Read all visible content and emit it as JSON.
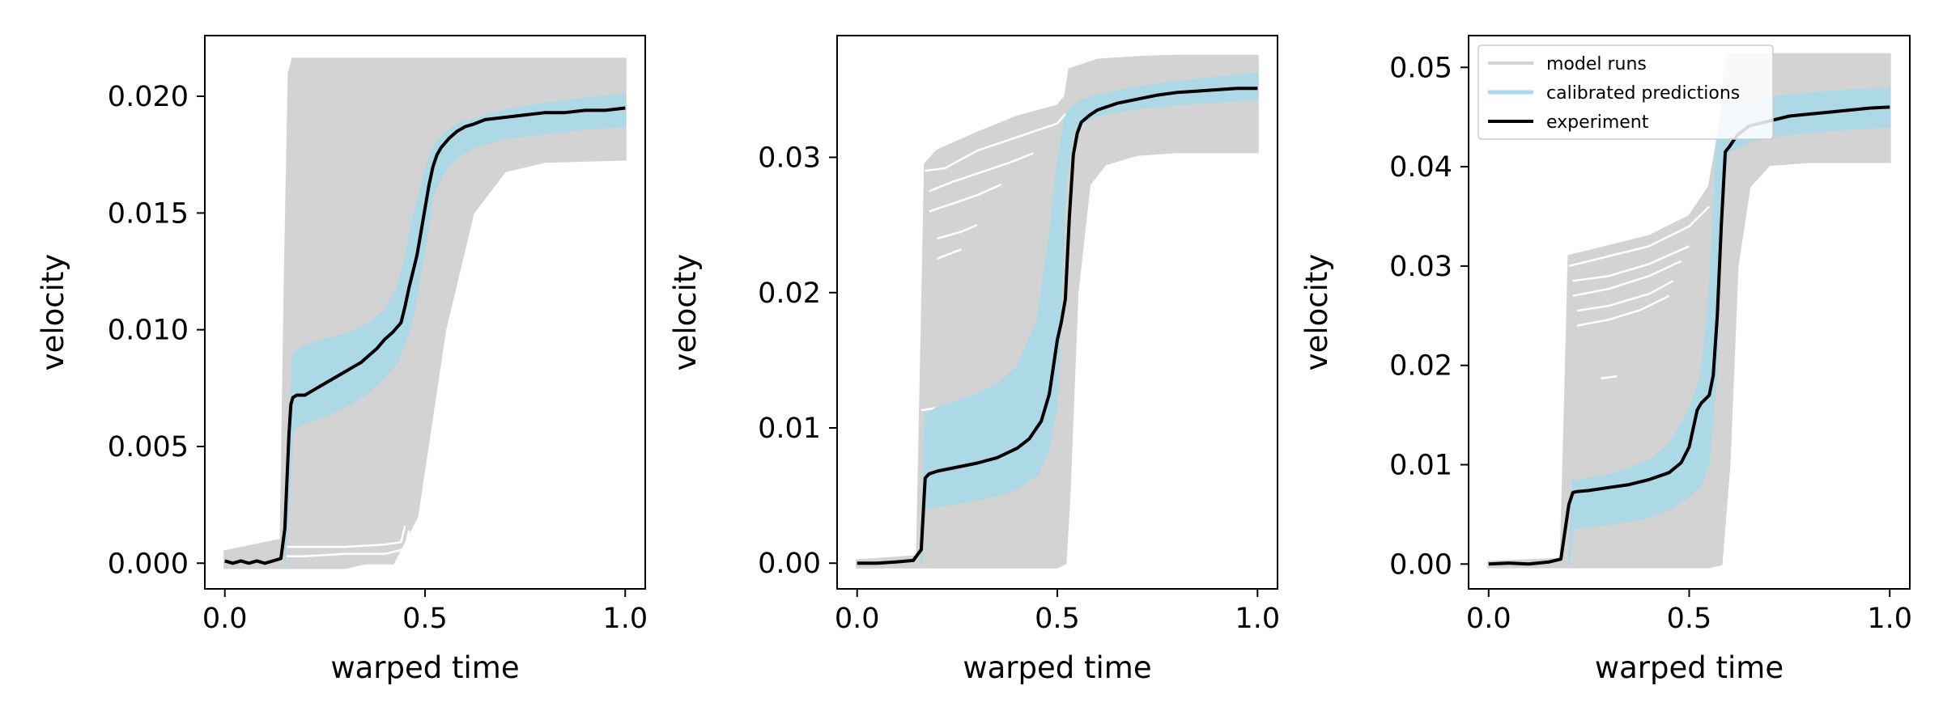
{
  "colors": {
    "model_runs": "#d3d3d3",
    "calibrated_predictions": "#add8e6",
    "experiment": "#000000",
    "axes": "#000000",
    "background": "#ffffff"
  },
  "chart_data": [
    {
      "type": "line",
      "title": "",
      "xlabel": "warped time",
      "ylabel": "velocity",
      "xlim": [
        -0.05,
        1.05
      ],
      "ylim": [
        -0.0011,
        0.0226
      ],
      "xticks": [
        0.0,
        0.5,
        1.0
      ],
      "xtick_labels": [
        "0.0",
        "0.5",
        "1.0"
      ],
      "yticks": [
        0.0,
        0.005,
        0.01,
        0.015,
        0.02
      ],
      "ytick_labels": [
        "0.000",
        "0.005",
        "0.010",
        "0.015",
        "0.020"
      ],
      "grid": false,
      "model_runs": {
        "upper_x": [
          0,
          0.14,
          0.15,
          0.16,
          0.17,
          1.0
        ],
        "upper_y": [
          0.0005,
          0.001,
          0.012,
          0.021,
          0.0216,
          0.0216
        ],
        "lower_x": [
          0,
          0.3,
          0.35,
          0.42,
          0.48,
          0.55,
          0.62,
          0.7,
          0.8,
          1.0
        ],
        "lower_y": [
          -0.0002,
          -0.0002,
          0.0,
          0.0,
          0.002,
          0.01,
          0.015,
          0.0168,
          0.0172,
          0.0173
        ],
        "white_lines": [
          {
            "x": [
              0.15,
              0.2,
              0.3,
              0.4,
              0.45,
              0.46
            ],
            "y": [
              0.0003,
              0.0003,
              0.0004,
              0.0004,
              0.0006,
              0.0014
            ]
          },
          {
            "x": [
              0.15,
              0.2,
              0.3,
              0.4,
              0.44,
              0.45
            ],
            "y": [
              0.0007,
              0.0007,
              0.0007,
              0.0008,
              0.0009,
              0.0016
            ]
          }
        ]
      },
      "calibrated_predictions": {
        "x": [
          0.15,
          0.17,
          0.2,
          0.25,
          0.3,
          0.35,
          0.4,
          0.43,
          0.45,
          0.47,
          0.5,
          0.52,
          0.55,
          0.58,
          0.62,
          0.7,
          0.8,
          0.9,
          1.0
        ],
        "upper": [
          0.0005,
          0.009,
          0.0093,
          0.0096,
          0.0098,
          0.0102,
          0.0108,
          0.0118,
          0.013,
          0.0148,
          0.0168,
          0.0178,
          0.0184,
          0.0188,
          0.019,
          0.0194,
          0.0197,
          0.0199,
          0.0201
        ],
        "lower": [
          -0.0001,
          0.0057,
          0.006,
          0.0063,
          0.0067,
          0.0072,
          0.008,
          0.0086,
          0.0094,
          0.0106,
          0.0135,
          0.0158,
          0.0168,
          0.0174,
          0.0178,
          0.0182,
          0.0184,
          0.0186,
          0.0187
        ]
      },
      "experiment": {
        "x": [
          0.0,
          0.02,
          0.04,
          0.06,
          0.08,
          0.1,
          0.12,
          0.14,
          0.15,
          0.16,
          0.165,
          0.17,
          0.18,
          0.2,
          0.22,
          0.24,
          0.26,
          0.28,
          0.3,
          0.32,
          0.34,
          0.36,
          0.38,
          0.4,
          0.42,
          0.44,
          0.45,
          0.46,
          0.47,
          0.48,
          0.49,
          0.5,
          0.51,
          0.52,
          0.53,
          0.54,
          0.55,
          0.56,
          0.58,
          0.6,
          0.62,
          0.65,
          0.7,
          0.75,
          0.8,
          0.85,
          0.9,
          0.95,
          1.0
        ],
        "y": [
          0.0001,
          0.0,
          0.0001,
          0.0,
          0.0001,
          0.0,
          0.0001,
          0.0002,
          0.0015,
          0.0055,
          0.0068,
          0.0071,
          0.0072,
          0.0072,
          0.0074,
          0.0076,
          0.0078,
          0.008,
          0.0082,
          0.0084,
          0.0086,
          0.0089,
          0.0092,
          0.0096,
          0.0099,
          0.0103,
          0.011,
          0.0118,
          0.0125,
          0.0132,
          0.0142,
          0.0152,
          0.0162,
          0.017,
          0.0175,
          0.0178,
          0.018,
          0.0182,
          0.0185,
          0.0187,
          0.0188,
          0.019,
          0.0191,
          0.0192,
          0.0193,
          0.0193,
          0.0194,
          0.0194,
          0.0195
        ]
      }
    },
    {
      "type": "line",
      "title": "",
      "xlabel": "warped time",
      "ylabel": "velocity",
      "xlim": [
        -0.05,
        1.05
      ],
      "ylim": [
        -0.0019,
        0.039
      ],
      "xticks": [
        0.0,
        0.5,
        1.0
      ],
      "xtick_labels": [
        "0.0",
        "0.5",
        "1.0"
      ],
      "yticks": [
        0.0,
        0.01,
        0.02,
        0.03
      ],
      "ytick_labels": [
        "0.00",
        "0.01",
        "0.02",
        "0.03"
      ],
      "grid": false,
      "model_runs": {
        "upper_x": [
          0,
          0.15,
          0.16,
          0.17,
          0.2,
          0.3,
          0.4,
          0.5,
          0.52,
          0.53,
          0.6,
          0.7,
          0.8,
          1.0
        ],
        "upper_y": [
          0.0002,
          0.0005,
          0.015,
          0.0295,
          0.0305,
          0.0318,
          0.033,
          0.0338,
          0.0345,
          0.0365,
          0.0372,
          0.0374,
          0.0375,
          0.0375
        ],
        "lower_x": [
          0,
          0.5,
          0.52,
          0.53,
          0.55,
          0.58,
          0.62,
          0.7,
          0.8,
          1.0
        ],
        "lower_y": [
          -0.0003,
          -0.0003,
          0.0,
          0.005,
          0.02,
          0.028,
          0.0295,
          0.0302,
          0.0304,
          0.0304
        ],
        "white_lines": [
          {
            "x": [
              0.17,
              0.22,
              0.3,
              0.4,
              0.5,
              0.52
            ],
            "y": [
              0.029,
              0.0292,
              0.0305,
              0.0315,
              0.0325,
              0.0332
            ]
          },
          {
            "x": [
              0.18,
              0.24,
              0.3,
              0.38,
              0.44
            ],
            "y": [
              0.0275,
              0.0282,
              0.0288,
              0.0296,
              0.0303
            ]
          },
          {
            "x": [
              0.18,
              0.24,
              0.3,
              0.36
            ],
            "y": [
              0.026,
              0.0266,
              0.0272,
              0.028
            ]
          },
          {
            "x": [
              0.2,
              0.26,
              0.3
            ],
            "y": [
              0.024,
              0.0245,
              0.025
            ]
          },
          {
            "x": [
              0.2,
              0.26
            ],
            "y": [
              0.0225,
              0.0232
            ]
          },
          {
            "x": [
              0.16,
              0.25,
              0.35,
              0.45,
              0.5
            ],
            "y": [
              0.0113,
              0.0117,
              0.0122,
              0.013,
              0.014
            ]
          }
        ]
      },
      "calibrated_predictions": {
        "x": [
          0.16,
          0.17,
          0.2,
          0.25,
          0.3,
          0.35,
          0.4,
          0.45,
          0.48,
          0.5,
          0.52,
          0.54,
          0.56,
          0.6,
          0.7,
          0.8,
          0.9,
          1.0
        ],
        "upper": [
          0.0005,
          0.011,
          0.0115,
          0.012,
          0.0125,
          0.0132,
          0.0145,
          0.018,
          0.024,
          0.0295,
          0.033,
          0.0338,
          0.0342,
          0.0346,
          0.0352,
          0.0356,
          0.0359,
          0.0362
        ],
        "lower": [
          -0.0001,
          0.004,
          0.0042,
          0.0044,
          0.0047,
          0.005,
          0.0055,
          0.0065,
          0.0085,
          0.012,
          0.028,
          0.0318,
          0.0325,
          0.0331,
          0.0336,
          0.0339,
          0.0341,
          0.0343
        ]
      },
      "experiment": {
        "x": [
          0.0,
          0.05,
          0.1,
          0.14,
          0.16,
          0.17,
          0.18,
          0.2,
          0.25,
          0.3,
          0.35,
          0.4,
          0.43,
          0.46,
          0.48,
          0.5,
          0.51,
          0.52,
          0.53,
          0.54,
          0.55,
          0.56,
          0.58,
          0.6,
          0.65,
          0.7,
          0.75,
          0.8,
          0.85,
          0.9,
          0.95,
          1.0
        ],
        "y": [
          0.0,
          0.0,
          0.0001,
          0.0002,
          0.001,
          0.0063,
          0.0066,
          0.0068,
          0.0071,
          0.0074,
          0.0078,
          0.0085,
          0.0092,
          0.0105,
          0.0125,
          0.0165,
          0.0178,
          0.0195,
          0.0255,
          0.0302,
          0.0318,
          0.0326,
          0.0331,
          0.0335,
          0.034,
          0.0343,
          0.0346,
          0.0348,
          0.0349,
          0.035,
          0.0351,
          0.0351
        ]
      }
    },
    {
      "type": "line",
      "title": "",
      "xlabel": "warped time",
      "ylabel": "velocity",
      "xlim": [
        -0.05,
        1.05
      ],
      "ylim": [
        -0.0025,
        0.0532
      ],
      "xticks": [
        0.0,
        0.5,
        1.0
      ],
      "xtick_labels": [
        "0.0",
        "0.5",
        "1.0"
      ],
      "yticks": [
        0.0,
        0.01,
        0.02,
        0.03,
        0.04,
        0.05
      ],
      "ytick_labels": [
        "0.00",
        "0.01",
        "0.02",
        "0.03",
        "0.04",
        "0.05"
      ],
      "grid": false,
      "legend": {
        "position": "upper-left",
        "entries": [
          "model runs",
          "calibrated predictions",
          "experiment"
        ]
      },
      "model_runs": {
        "upper_x": [
          0,
          0.18,
          0.19,
          0.2,
          0.3,
          0.4,
          0.5,
          0.55,
          0.58,
          0.59,
          0.6,
          1.0
        ],
        "upper_y": [
          0.0002,
          0.0005,
          0.015,
          0.031,
          0.032,
          0.033,
          0.035,
          0.038,
          0.045,
          0.05,
          0.0513,
          0.0513
        ],
        "lower_x": [
          0,
          0.55,
          0.58,
          0.6,
          0.62,
          0.65,
          0.7,
          0.8,
          1.0
        ],
        "lower_y": [
          -0.0003,
          -0.0003,
          0.0,
          0.01,
          0.03,
          0.038,
          0.0402,
          0.0405,
          0.0405
        ],
        "white_lines": [
          {
            "x": [
              0.2,
              0.25,
              0.3,
              0.4,
              0.5,
              0.55
            ],
            "y": [
              0.03,
              0.0305,
              0.031,
              0.032,
              0.034,
              0.036
            ]
          },
          {
            "x": [
              0.21,
              0.3,
              0.4,
              0.5
            ],
            "y": [
              0.0285,
              0.029,
              0.0302,
              0.032
            ]
          },
          {
            "x": [
              0.21,
              0.3,
              0.4,
              0.48
            ],
            "y": [
              0.027,
              0.0277,
              0.029,
              0.0305
            ]
          },
          {
            "x": [
              0.22,
              0.3,
              0.4,
              0.46
            ],
            "y": [
              0.0255,
              0.026,
              0.0272,
              0.0285
            ]
          },
          {
            "x": [
              0.22,
              0.3,
              0.38,
              0.45
            ],
            "y": [
              0.024,
              0.0246,
              0.0256,
              0.027
            ]
          },
          {
            "x": [
              0.28,
              0.32
            ],
            "y": [
              0.0187,
              0.0189
            ]
          }
        ]
      },
      "calibrated_predictions": {
        "x": [
          0.2,
          0.21,
          0.25,
          0.3,
          0.35,
          0.4,
          0.45,
          0.5,
          0.53,
          0.55,
          0.57,
          0.58,
          0.6,
          0.65,
          0.7,
          0.8,
          0.9,
          1.0
        ],
        "upper": [
          0.0005,
          0.0083,
          0.0086,
          0.009,
          0.0096,
          0.0105,
          0.012,
          0.0155,
          0.019,
          0.027,
          0.043,
          0.0455,
          0.046,
          0.0465,
          0.047,
          0.0474,
          0.0477,
          0.0479
        ],
        "lower": [
          -0.0001,
          0.0036,
          0.0038,
          0.004,
          0.0043,
          0.0047,
          0.0055,
          0.0068,
          0.008,
          0.0105,
          0.02,
          0.038,
          0.0415,
          0.0425,
          0.043,
          0.0435,
          0.0438,
          0.044
        ]
      },
      "experiment": {
        "x": [
          0.0,
          0.05,
          0.1,
          0.15,
          0.18,
          0.2,
          0.21,
          0.22,
          0.25,
          0.3,
          0.35,
          0.4,
          0.45,
          0.48,
          0.5,
          0.52,
          0.53,
          0.55,
          0.56,
          0.57,
          0.58,
          0.59,
          0.6,
          0.62,
          0.65,
          0.7,
          0.75,
          0.8,
          0.85,
          0.9,
          0.95,
          1.0
        ],
        "y": [
          0.0,
          0.0001,
          0.0,
          0.0002,
          0.0005,
          0.006,
          0.0072,
          0.0073,
          0.0074,
          0.0077,
          0.008,
          0.0085,
          0.0092,
          0.0102,
          0.0118,
          0.0155,
          0.0162,
          0.017,
          0.019,
          0.025,
          0.034,
          0.0415,
          0.042,
          0.0432,
          0.0441,
          0.0446,
          0.0451,
          0.0453,
          0.0455,
          0.0457,
          0.0459,
          0.046
        ]
      }
    }
  ]
}
